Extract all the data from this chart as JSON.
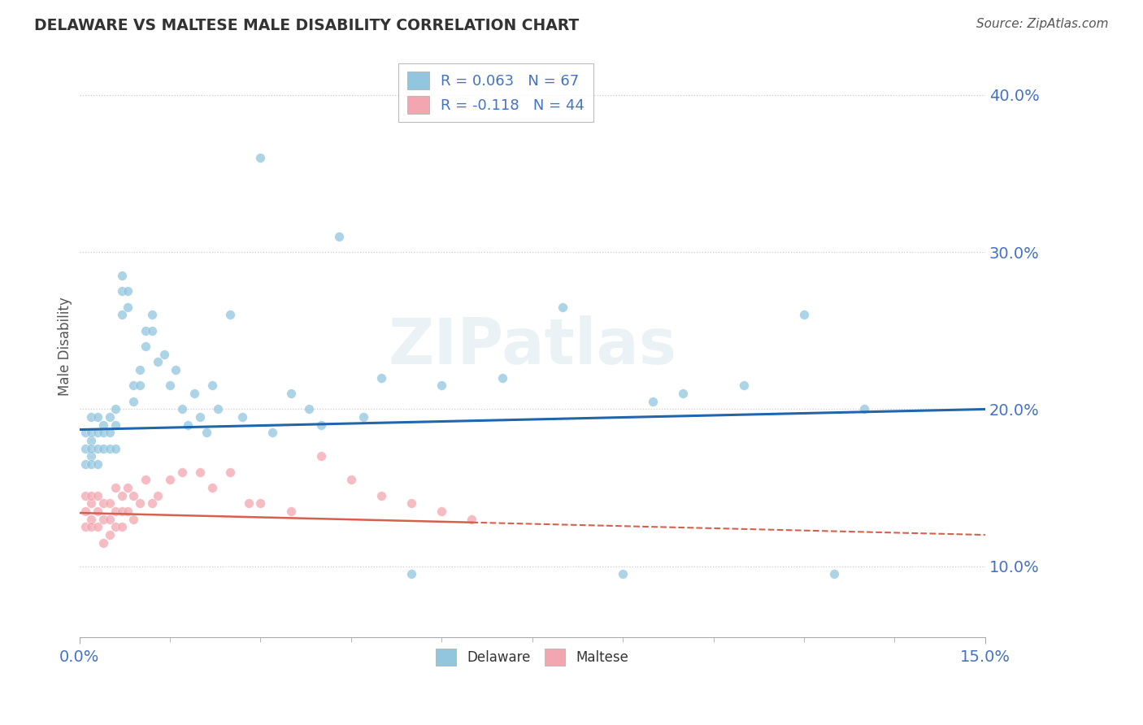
{
  "title": "DELAWARE VS MALTESE MALE DISABILITY CORRELATION CHART",
  "source": "Source: ZipAtlas.com",
  "ylabel": "Male Disability",
  "xlim": [
    0.0,
    0.15
  ],
  "ylim": [
    0.055,
    0.425
  ],
  "ytick_vals": [
    0.1,
    0.2,
    0.3,
    0.4
  ],
  "ytick_labels": [
    "10.0%",
    "20.0%",
    "30.0%",
    "40.0%"
  ],
  "xtick_vals": [
    0.0,
    0.15
  ],
  "xtick_labels": [
    "0.0%",
    "15.0%"
  ],
  "delaware_R": 0.063,
  "delaware_N": 67,
  "maltese_R": -0.118,
  "maltese_N": 44,
  "delaware_color": "#92c5de",
  "maltese_color": "#f4a6b0",
  "trendline_delaware_color": "#2166ac",
  "trendline_maltese_color": "#d6604d",
  "watermark": "ZIPatlas",
  "delaware_x": [
    0.001,
    0.001,
    0.001,
    0.002,
    0.002,
    0.002,
    0.002,
    0.002,
    0.002,
    0.003,
    0.003,
    0.003,
    0.003,
    0.004,
    0.004,
    0.004,
    0.005,
    0.005,
    0.005,
    0.006,
    0.006,
    0.006,
    0.007,
    0.007,
    0.007,
    0.008,
    0.008,
    0.009,
    0.009,
    0.01,
    0.01,
    0.011,
    0.011,
    0.012,
    0.012,
    0.013,
    0.014,
    0.015,
    0.016,
    0.017,
    0.018,
    0.019,
    0.02,
    0.021,
    0.022,
    0.023,
    0.025,
    0.027,
    0.03,
    0.032,
    0.035,
    0.038,
    0.04,
    0.043,
    0.047,
    0.05,
    0.055,
    0.06,
    0.07,
    0.08,
    0.09,
    0.095,
    0.1,
    0.11,
    0.12,
    0.125,
    0.13
  ],
  "delaware_y": [
    0.175,
    0.185,
    0.165,
    0.18,
    0.17,
    0.185,
    0.165,
    0.195,
    0.175,
    0.185,
    0.175,
    0.195,
    0.165,
    0.185,
    0.175,
    0.19,
    0.195,
    0.185,
    0.175,
    0.2,
    0.19,
    0.175,
    0.26,
    0.275,
    0.285,
    0.275,
    0.265,
    0.215,
    0.205,
    0.225,
    0.215,
    0.25,
    0.24,
    0.26,
    0.25,
    0.23,
    0.235,
    0.215,
    0.225,
    0.2,
    0.19,
    0.21,
    0.195,
    0.185,
    0.215,
    0.2,
    0.26,
    0.195,
    0.36,
    0.185,
    0.21,
    0.2,
    0.19,
    0.31,
    0.195,
    0.22,
    0.095,
    0.215,
    0.22,
    0.265,
    0.095,
    0.205,
    0.21,
    0.215,
    0.26,
    0.095,
    0.2
  ],
  "maltese_x": [
    0.001,
    0.001,
    0.001,
    0.002,
    0.002,
    0.002,
    0.002,
    0.003,
    0.003,
    0.003,
    0.004,
    0.004,
    0.004,
    0.005,
    0.005,
    0.005,
    0.006,
    0.006,
    0.006,
    0.007,
    0.007,
    0.007,
    0.008,
    0.008,
    0.009,
    0.009,
    0.01,
    0.011,
    0.012,
    0.013,
    0.015,
    0.017,
    0.02,
    0.022,
    0.025,
    0.028,
    0.03,
    0.035,
    0.04,
    0.045,
    0.05,
    0.055,
    0.06,
    0.065
  ],
  "maltese_y": [
    0.135,
    0.145,
    0.125,
    0.14,
    0.13,
    0.145,
    0.125,
    0.135,
    0.145,
    0.125,
    0.14,
    0.13,
    0.115,
    0.14,
    0.13,
    0.12,
    0.15,
    0.135,
    0.125,
    0.145,
    0.135,
    0.125,
    0.15,
    0.135,
    0.145,
    0.13,
    0.14,
    0.155,
    0.14,
    0.145,
    0.155,
    0.16,
    0.16,
    0.15,
    0.16,
    0.14,
    0.14,
    0.135,
    0.17,
    0.155,
    0.145,
    0.14,
    0.135,
    0.13
  ]
}
